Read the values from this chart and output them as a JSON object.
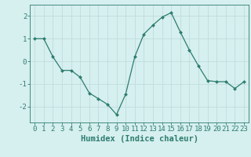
{
  "x": [
    0,
    1,
    2,
    3,
    4,
    5,
    6,
    7,
    8,
    9,
    10,
    11,
    12,
    13,
    14,
    15,
    16,
    17,
    18,
    19,
    20,
    21,
    22,
    23
  ],
  "y": [
    1.0,
    1.0,
    0.2,
    -0.4,
    -0.4,
    -0.7,
    -1.4,
    -1.65,
    -1.9,
    -2.35,
    -1.45,
    0.2,
    1.2,
    1.6,
    1.95,
    2.15,
    1.3,
    0.5,
    -0.2,
    -0.85,
    -0.9,
    -0.9,
    -1.2,
    -0.9
  ],
  "line_color": "#2d7d6e",
  "marker": "D",
  "marker_size": 2.0,
  "bg_color": "#d6efef",
  "grid_color": "#c0dcdc",
  "xlabel": "Humidex (Indice chaleur)",
  "ylim": [
    -2.7,
    2.5
  ],
  "xlim": [
    -0.5,
    23.5
  ],
  "yticks": [
    -2,
    -1,
    0,
    1,
    2
  ],
  "xticks": [
    0,
    1,
    2,
    3,
    4,
    5,
    6,
    7,
    8,
    9,
    10,
    11,
    12,
    13,
    14,
    15,
    16,
    17,
    18,
    19,
    20,
    21,
    22,
    23
  ],
  "tick_fontsize": 6.5,
  "label_fontsize": 7.5
}
